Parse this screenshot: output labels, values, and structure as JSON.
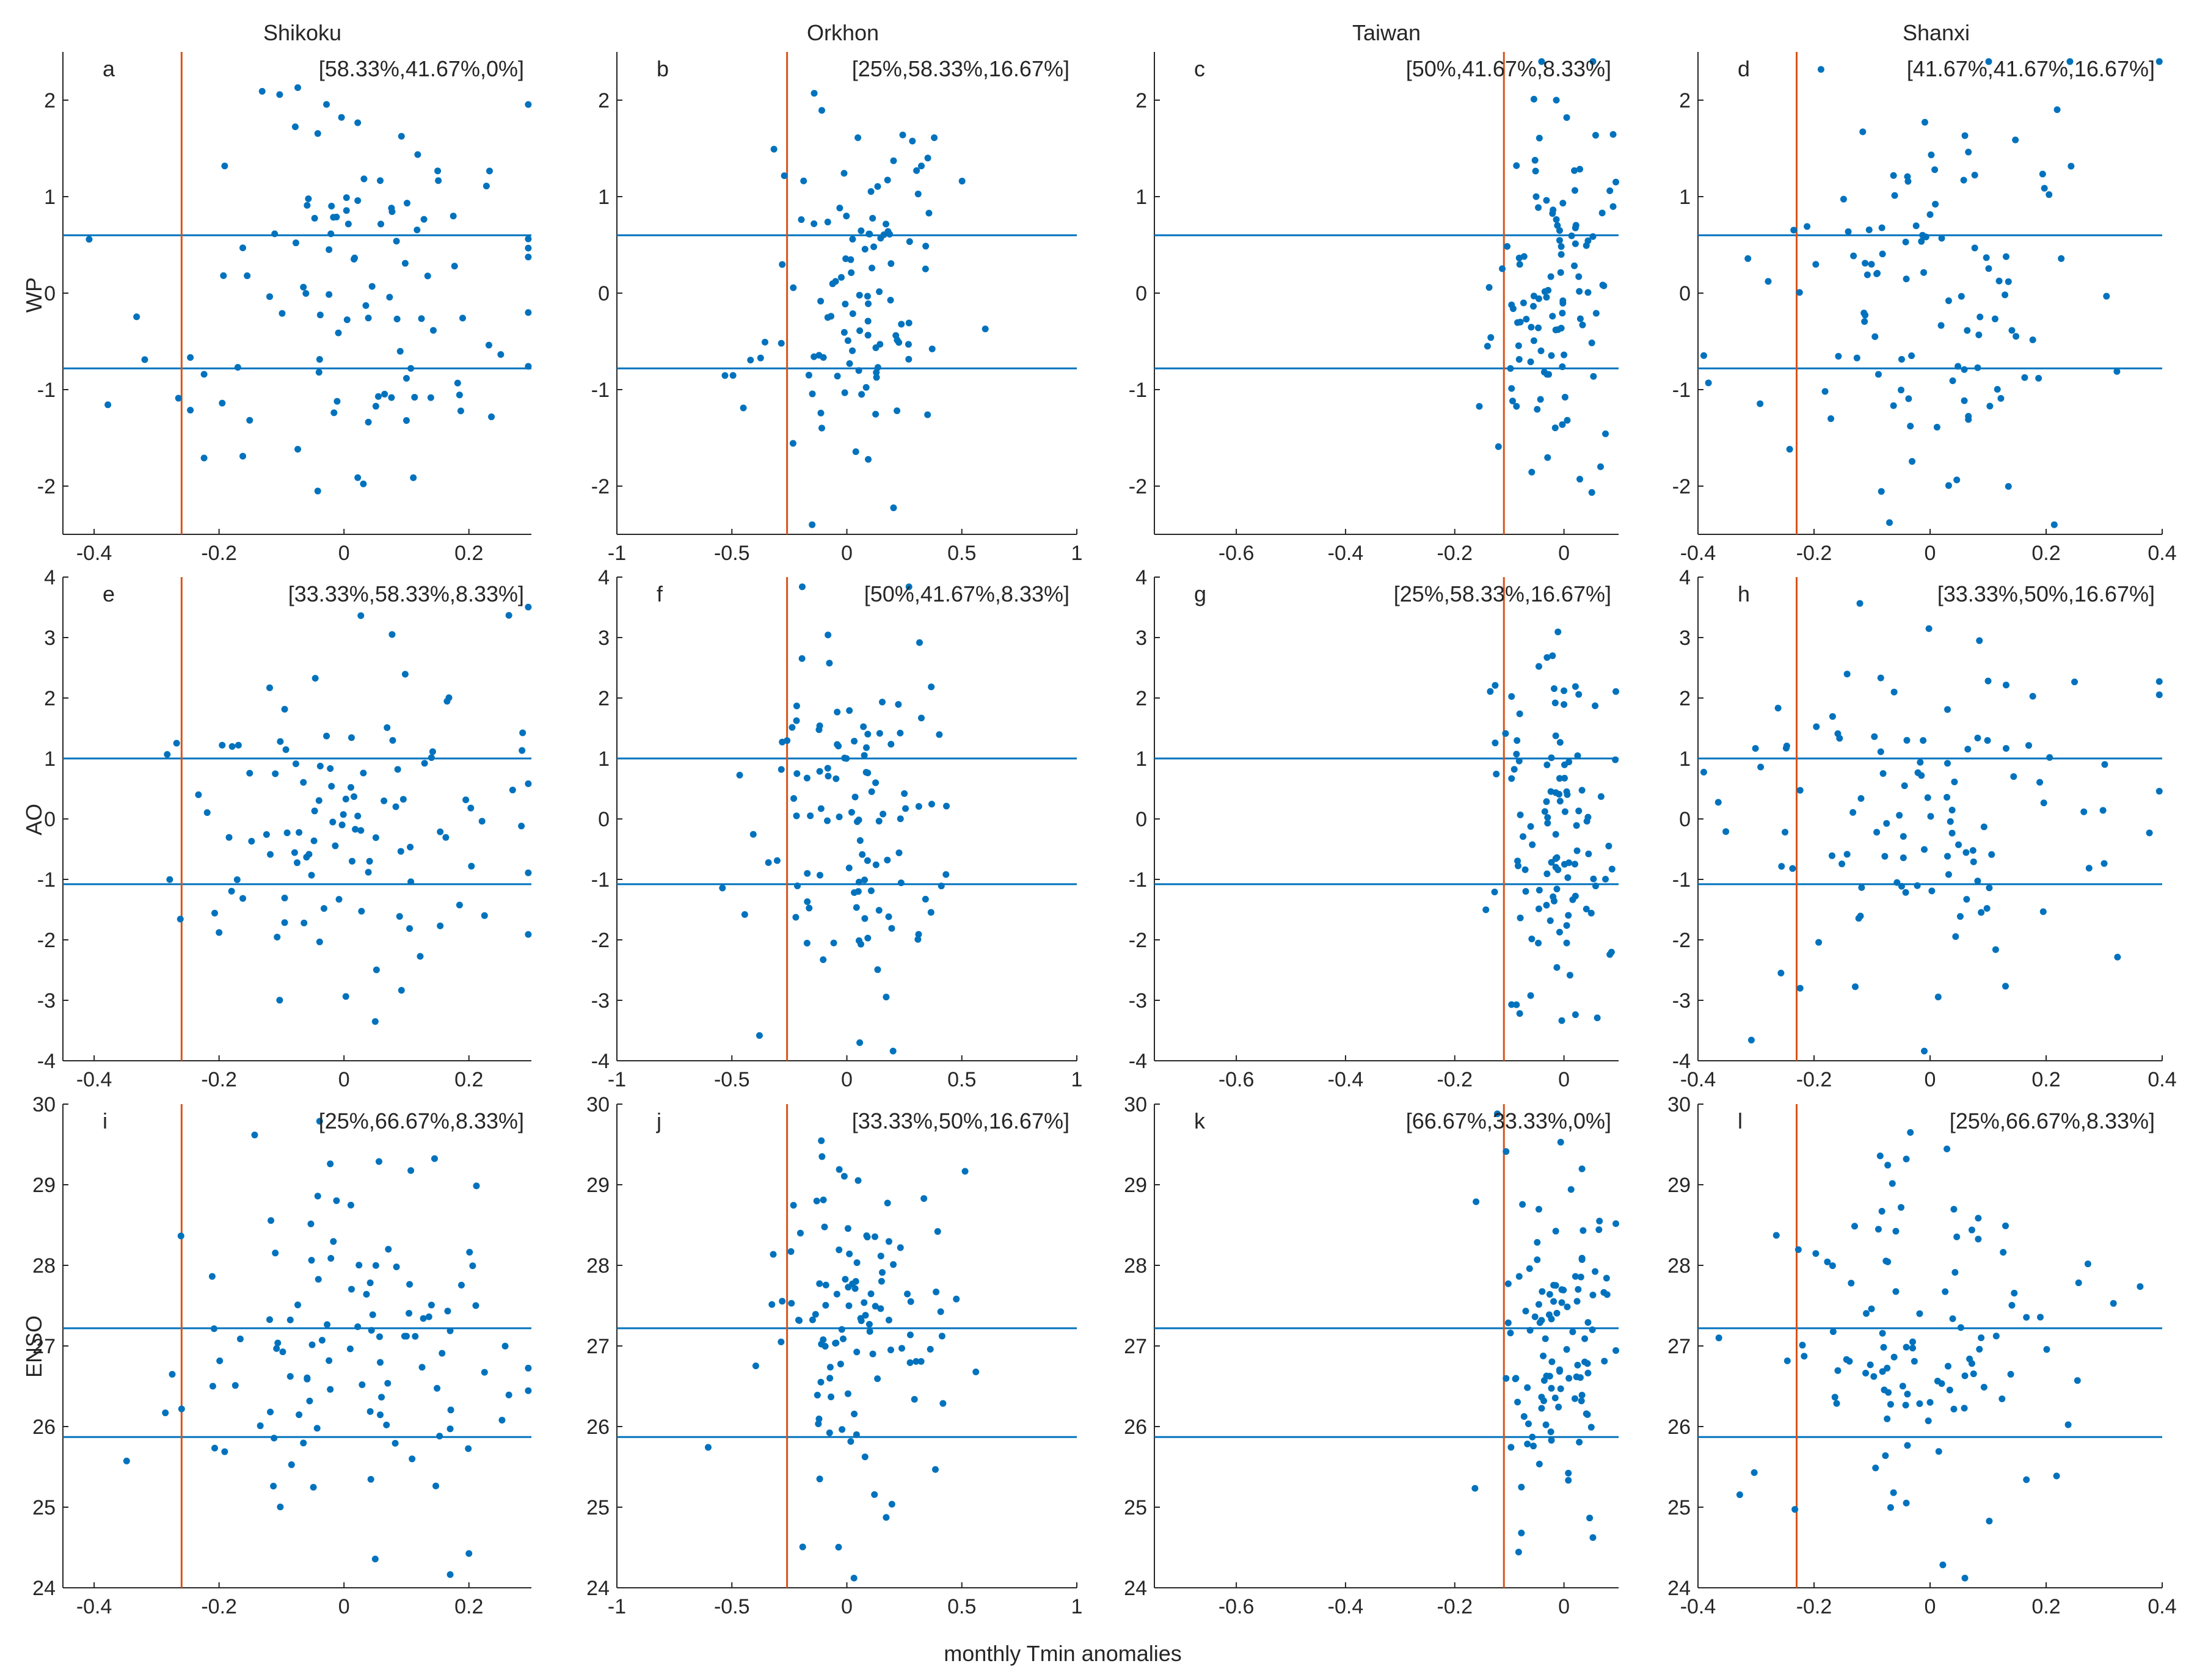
{
  "figure": {
    "xlabel": "monthly Tmin anomalies",
    "columns": [
      "Shikoku",
      "Orkhon",
      "Taiwan",
      "Shanxi"
    ],
    "rows": [
      "WP",
      "AO",
      "ENSO"
    ],
    "colors": {
      "dots": "#0072BD",
      "hlines": "#0072BD",
      "vline": "#D95319",
      "axes": "#262626"
    }
  },
  "chart_data": [
    {
      "type": "scatter",
      "letter": "a",
      "station": "Shikoku",
      "index": "WP",
      "label": "[58.33%,41.67%,0%]",
      "xlim": [
        -0.45,
        0.3
      ],
      "ylim": [
        -2.5,
        2.5
      ],
      "xticks": [
        -0.4,
        -0.2,
        0,
        0.2
      ],
      "xtick_labels": [
        "-0.4",
        "-0.2",
        "0",
        "0.2"
      ],
      "yticks": [
        -2,
        -1,
        0,
        1,
        2
      ],
      "ytick_labels": [
        "-2",
        "-1",
        "0",
        "1",
        "2"
      ],
      "vline": -0.26,
      "hlines": [
        0.6,
        -0.78
      ],
      "seed": 1
    },
    {
      "type": "scatter",
      "letter": "b",
      "station": "Orkhon",
      "index": "WP",
      "label": "[25%,58.33%,16.67%]",
      "xlim": [
        -1,
        1
      ],
      "ylim": [
        -2.5,
        2.5
      ],
      "xticks": [
        -1,
        -0.5,
        0,
        0.5,
        1
      ],
      "xtick_labels": [
        "-1",
        "-0.5",
        "0",
        "0.5",
        "1"
      ],
      "yticks": [
        -2,
        -1,
        0,
        1,
        2
      ],
      "ytick_labels": [
        "-2",
        "-1",
        "0",
        "1",
        "2"
      ],
      "vline": -0.26,
      "hlines": [
        0.6,
        -0.78
      ],
      "seed": 2
    },
    {
      "type": "scatter",
      "letter": "c",
      "station": "Taiwan",
      "index": "WP",
      "label": "[50%,41.67%,8.33%]",
      "xlim": [
        -0.75,
        0.1
      ],
      "ylim": [
        -2.5,
        2.5
      ],
      "xticks": [
        -0.6,
        -0.4,
        -0.2,
        0
      ],
      "xtick_labels": [
        "-0.6",
        "-0.4",
        "-0.2",
        "0"
      ],
      "yticks": [
        -2,
        -1,
        0,
        1,
        2
      ],
      "ytick_labels": [
        "-2",
        "-1",
        "0",
        "1",
        "2"
      ],
      "vline": -0.11,
      "hlines": [
        0.6,
        -0.78
      ],
      "seed": 3
    },
    {
      "type": "scatter",
      "letter": "d",
      "station": "Shanxi",
      "index": "WP",
      "label": "[41.67%,41.67%,16.67%]",
      "xlim": [
        -0.4,
        0.4
      ],
      "ylim": [
        -2.5,
        2.5
      ],
      "xticks": [
        -0.4,
        -0.2,
        0,
        0.2,
        0.4
      ],
      "xtick_labels": [
        "-0.4",
        "-0.2",
        "0",
        "0.2",
        "0.4"
      ],
      "yticks": [
        -2,
        -1,
        0,
        1,
        2
      ],
      "ytick_labels": [
        "-2",
        "-1",
        "0",
        "1",
        "2"
      ],
      "vline": -0.23,
      "hlines": [
        0.6,
        -0.78
      ],
      "seed": 4
    },
    {
      "type": "scatter",
      "letter": "e",
      "station": "Shikoku",
      "index": "AO",
      "label": "[33.33%,58.33%,8.33%]",
      "xlim": [
        -0.45,
        0.3
      ],
      "ylim": [
        -4,
        4
      ],
      "xticks": [
        -0.4,
        -0.2,
        0,
        0.2
      ],
      "xtick_labels": [
        "-0.4",
        "-0.2",
        "0",
        "0.2"
      ],
      "yticks": [
        -4,
        -3,
        -2,
        -1,
        0,
        1,
        2,
        3,
        4
      ],
      "ytick_labels": [
        "-4",
        "-3",
        "-2",
        "-1",
        "0",
        "1",
        "2",
        "3",
        "4"
      ],
      "vline": -0.26,
      "hlines": [
        1.0,
        -1.08
      ],
      "seed": 5
    },
    {
      "type": "scatter",
      "letter": "f",
      "station": "Orkhon",
      "index": "AO",
      "label": "[50%,41.67%,8.33%]",
      "xlim": [
        -1,
        1
      ],
      "ylim": [
        -4,
        4
      ],
      "xticks": [
        -1,
        -0.5,
        0,
        0.5,
        1
      ],
      "xtick_labels": [
        "-1",
        "-0.5",
        "0",
        "0.5",
        "1"
      ],
      "yticks": [
        -4,
        -3,
        -2,
        -1,
        0,
        1,
        2,
        3,
        4
      ],
      "ytick_labels": [
        "-4",
        "-3",
        "-2",
        "-1",
        "0",
        "1",
        "2",
        "3",
        "4"
      ],
      "vline": -0.26,
      "hlines": [
        1.0,
        -1.08
      ],
      "seed": 6
    },
    {
      "type": "scatter",
      "letter": "g",
      "station": "Taiwan",
      "index": "AO",
      "label": "[25%,58.33%,16.67%]",
      "xlim": [
        -0.75,
        0.1
      ],
      "ylim": [
        -4,
        4
      ],
      "xticks": [
        -0.6,
        -0.4,
        -0.2,
        0
      ],
      "xtick_labels": [
        "-0.6",
        "-0.4",
        "-0.2",
        "0"
      ],
      "yticks": [
        -4,
        -3,
        -2,
        -1,
        0,
        1,
        2,
        3,
        4
      ],
      "ytick_labels": [
        "-4",
        "-3",
        "-2",
        "-1",
        "0",
        "1",
        "2",
        "3",
        "4"
      ],
      "vline": -0.11,
      "hlines": [
        1.0,
        -1.08
      ],
      "seed": 7
    },
    {
      "type": "scatter",
      "letter": "h",
      "station": "Shanxi",
      "index": "AO",
      "label": "[33.33%,50%,16.67%]",
      "xlim": [
        -0.4,
        0.4
      ],
      "ylim": [
        -4,
        4
      ],
      "xticks": [
        -0.4,
        -0.2,
        0,
        0.2,
        0.4
      ],
      "xtick_labels": [
        "-0.4",
        "-0.2",
        "0",
        "0.2",
        "0.4"
      ],
      "yticks": [
        -4,
        -3,
        -2,
        -1,
        0,
        1,
        2,
        3,
        4
      ],
      "ytick_labels": [
        "-4",
        "-3",
        "-2",
        "-1",
        "0",
        "1",
        "2",
        "3",
        "4"
      ],
      "vline": -0.23,
      "hlines": [
        1.0,
        -1.08
      ],
      "seed": 8
    },
    {
      "type": "scatter",
      "letter": "i",
      "station": "Shikoku",
      "index": "ENSO",
      "label": "[25%,66.67%,8.33%]",
      "xlim": [
        -0.45,
        0.3
      ],
      "ylim": [
        24,
        30
      ],
      "xticks": [
        -0.4,
        -0.2,
        0,
        0.2
      ],
      "xtick_labels": [
        "-0.4",
        "-0.2",
        "0",
        "0.2"
      ],
      "yticks": [
        24,
        25,
        26,
        27,
        28,
        29,
        30
      ],
      "ytick_labels": [
        "24",
        "25",
        "26",
        "27",
        "28",
        "29",
        "30"
      ],
      "vline": -0.26,
      "hlines": [
        27.22,
        25.87
      ],
      "seed": 9
    },
    {
      "type": "scatter",
      "letter": "j",
      "station": "Orkhon",
      "index": "ENSO",
      "label": "[33.33%,50%,16.67%]",
      "xlim": [
        -1,
        1
      ],
      "ylim": [
        24,
        30
      ],
      "xticks": [
        -1,
        -0.5,
        0,
        0.5,
        1
      ],
      "xtick_labels": [
        "-1",
        "-0.5",
        "0",
        "0.5",
        "1"
      ],
      "yticks": [
        24,
        25,
        26,
        27,
        28,
        29,
        30
      ],
      "ytick_labels": [
        "24",
        "25",
        "26",
        "27",
        "28",
        "29",
        "30"
      ],
      "vline": -0.26,
      "hlines": [
        27.22,
        25.87
      ],
      "seed": 10
    },
    {
      "type": "scatter",
      "letter": "k",
      "station": "Taiwan",
      "index": "ENSO",
      "label": "[66.67%,33.33%,0%]",
      "xlim": [
        -0.75,
        0.1
      ],
      "ylim": [
        24,
        30
      ],
      "xticks": [
        -0.6,
        -0.4,
        -0.2,
        0
      ],
      "xtick_labels": [
        "-0.6",
        "-0.4",
        "-0.2",
        "0"
      ],
      "yticks": [
        24,
        25,
        26,
        27,
        28,
        29,
        30
      ],
      "ytick_labels": [
        "24",
        "25",
        "26",
        "27",
        "28",
        "29",
        "30"
      ],
      "vline": -0.11,
      "hlines": [
        27.22,
        25.87
      ],
      "seed": 11
    },
    {
      "type": "scatter",
      "letter": "l",
      "station": "Shanxi",
      "index": "ENSO",
      "label": "[25%,66.67%,8.33%]",
      "xlim": [
        -0.4,
        0.4
      ],
      "ylim": [
        24,
        30
      ],
      "xticks": [
        -0.4,
        -0.2,
        0,
        0.2,
        0.4
      ],
      "xtick_labels": [
        "-0.4",
        "-0.2",
        "0",
        "0.2",
        "0.4"
      ],
      "yticks": [
        24,
        25,
        26,
        27,
        28,
        29,
        30
      ],
      "ytick_labels": [
        "24",
        "25",
        "26",
        "27",
        "28",
        "29",
        "30"
      ],
      "vline": -0.23,
      "hlines": [
        27.22,
        25.87
      ],
      "seed": 12
    }
  ]
}
